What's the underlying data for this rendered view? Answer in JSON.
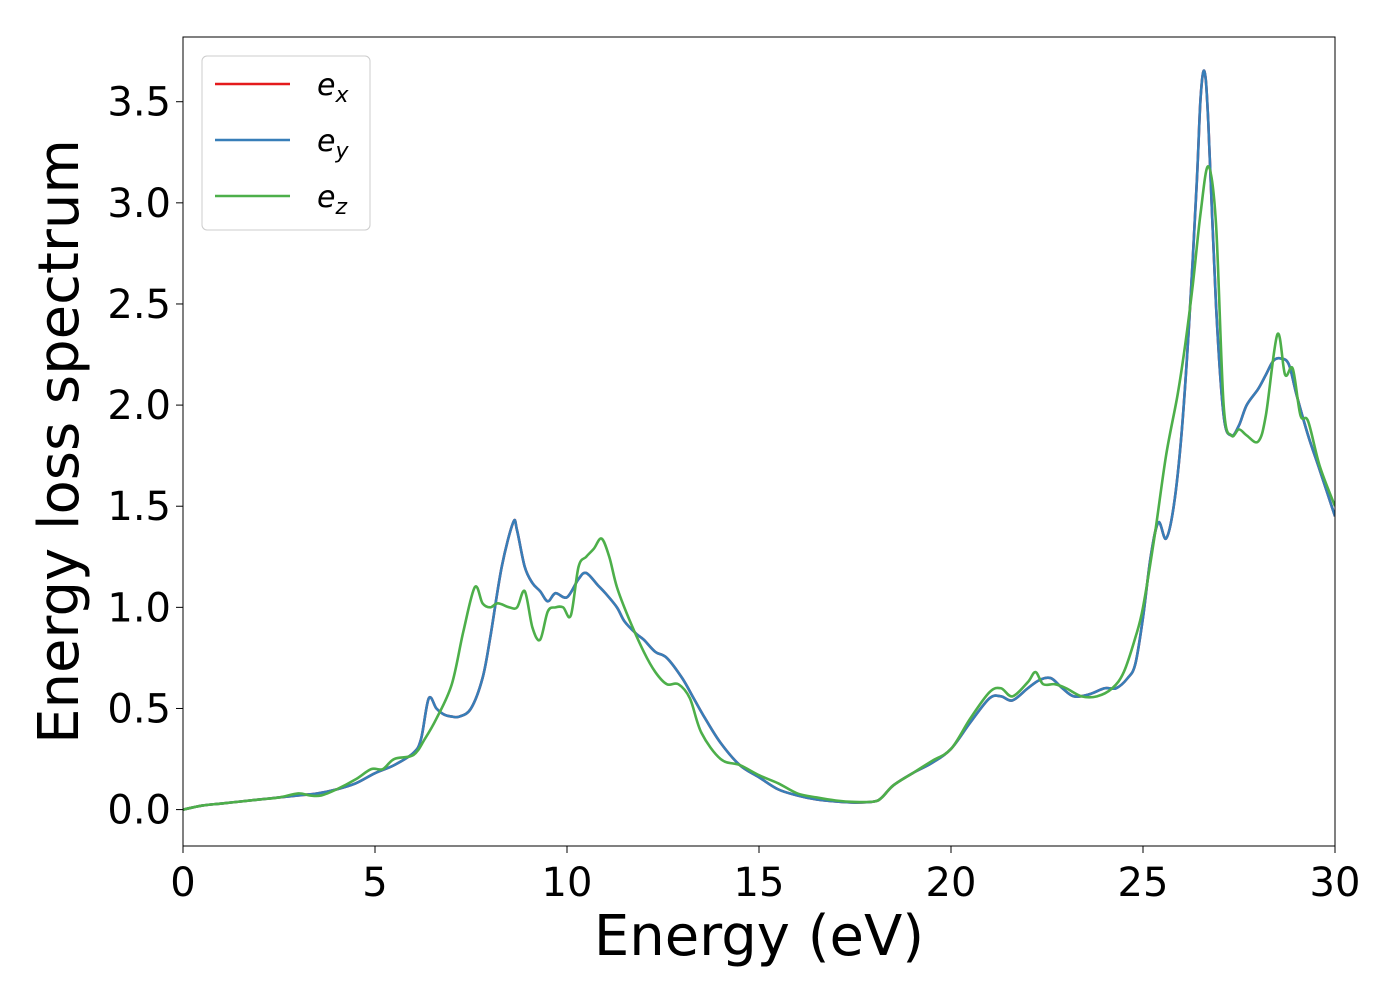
{
  "chart_data": {
    "type": "line",
    "xlabel": "Energy (eV)",
    "ylabel": "Energy loss spectrum",
    "xlim": [
      0,
      30
    ],
    "ylim": [
      -0.18,
      3.82
    ],
    "xticks": [
      0,
      5,
      10,
      15,
      20,
      25,
      30
    ],
    "xtick_labels": [
      "0",
      "5",
      "10",
      "15",
      "20",
      "25",
      "30"
    ],
    "yticks": [
      0.0,
      0.5,
      1.0,
      1.5,
      2.0,
      2.5,
      3.0,
      3.5
    ],
    "ytick_labels": [
      "0.0",
      "0.5",
      "1.0",
      "1.5",
      "2.0",
      "2.5",
      "3.0",
      "3.5"
    ],
    "grid": false,
    "legend_position": "top-left",
    "series": [
      {
        "name": "e_x",
        "label_base": "e",
        "label_sub": "x",
        "color": "#e41a1c",
        "x": [
          0,
          0.5,
          1,
          1.5,
          2,
          2.5,
          3,
          3.5,
          4,
          4.5,
          5,
          5.5,
          6,
          6.2,
          6.4,
          6.6,
          6.8,
          7,
          7.2,
          7.5,
          7.8,
          8,
          8.3,
          8.6,
          8.7,
          8.9,
          9.1,
          9.3,
          9.5,
          9.7,
          10,
          10.3,
          10.5,
          10.8,
          11,
          11.3,
          11.5,
          11.8,
          12,
          12.3,
          12.6,
          13,
          13.3,
          13.6,
          14,
          14.5,
          15,
          15.5,
          16,
          16.5,
          17,
          17.5,
          18,
          18.2,
          18.5,
          19,
          19.5,
          20,
          20.5,
          21,
          21.3,
          21.6,
          22,
          22.3,
          22.6,
          22.9,
          23.2,
          23.6,
          24,
          24.3,
          24.6,
          24.8,
          25,
          25.2,
          25.4,
          25.6,
          25.8,
          26,
          26.2,
          26.4,
          26.5,
          26.6,
          26.7,
          26.9,
          27.1,
          27.3,
          27.5,
          27.7,
          28,
          28.2,
          28.4,
          28.6,
          28.8,
          29,
          29.3,
          29.6,
          30
        ],
        "y": [
          0,
          0.02,
          0.03,
          0.04,
          0.05,
          0.06,
          0.07,
          0.08,
          0.1,
          0.13,
          0.18,
          0.22,
          0.28,
          0.35,
          0.55,
          0.5,
          0.47,
          0.46,
          0.46,
          0.5,
          0.65,
          0.85,
          1.2,
          1.42,
          1.38,
          1.2,
          1.12,
          1.08,
          1.03,
          1.07,
          1.05,
          1.14,
          1.17,
          1.11,
          1.07,
          1.0,
          0.93,
          0.87,
          0.84,
          0.78,
          0.75,
          0.65,
          0.55,
          0.45,
          0.33,
          0.22,
          0.16,
          0.1,
          0.07,
          0.05,
          0.04,
          0.035,
          0.04,
          0.06,
          0.12,
          0.18,
          0.23,
          0.3,
          0.43,
          0.55,
          0.56,
          0.54,
          0.6,
          0.64,
          0.65,
          0.6,
          0.56,
          0.57,
          0.6,
          0.6,
          0.65,
          0.72,
          0.95,
          1.25,
          1.42,
          1.34,
          1.5,
          1.85,
          2.4,
          3.1,
          3.52,
          3.65,
          3.4,
          2.5,
          1.95,
          1.85,
          1.9,
          2.0,
          2.08,
          2.15,
          2.22,
          2.23,
          2.2,
          2.05,
          1.85,
          1.68,
          1.45
        ]
      },
      {
        "name": "e_y",
        "label_base": "e",
        "label_sub": "y",
        "color": "#377eb8",
        "x": [
          0,
          0.5,
          1,
          1.5,
          2,
          2.5,
          3,
          3.5,
          4,
          4.5,
          5,
          5.5,
          6,
          6.2,
          6.4,
          6.6,
          6.8,
          7,
          7.2,
          7.5,
          7.8,
          8,
          8.3,
          8.6,
          8.7,
          8.9,
          9.1,
          9.3,
          9.5,
          9.7,
          10,
          10.3,
          10.5,
          10.8,
          11,
          11.3,
          11.5,
          11.8,
          12,
          12.3,
          12.6,
          13,
          13.3,
          13.6,
          14,
          14.5,
          15,
          15.5,
          16,
          16.5,
          17,
          17.5,
          18,
          18.2,
          18.5,
          19,
          19.5,
          20,
          20.5,
          21,
          21.3,
          21.6,
          22,
          22.3,
          22.6,
          22.9,
          23.2,
          23.6,
          24,
          24.3,
          24.6,
          24.8,
          25,
          25.2,
          25.4,
          25.6,
          25.8,
          26,
          26.2,
          26.4,
          26.5,
          26.6,
          26.7,
          26.9,
          27.1,
          27.3,
          27.5,
          27.7,
          28,
          28.2,
          28.4,
          28.6,
          28.8,
          29,
          29.3,
          29.6,
          30
        ],
        "y": [
          0,
          0.02,
          0.03,
          0.04,
          0.05,
          0.06,
          0.07,
          0.08,
          0.1,
          0.13,
          0.18,
          0.22,
          0.28,
          0.35,
          0.55,
          0.5,
          0.47,
          0.46,
          0.46,
          0.5,
          0.65,
          0.85,
          1.2,
          1.42,
          1.38,
          1.2,
          1.12,
          1.08,
          1.03,
          1.07,
          1.05,
          1.14,
          1.17,
          1.11,
          1.07,
          1.0,
          0.93,
          0.87,
          0.84,
          0.78,
          0.75,
          0.65,
          0.55,
          0.45,
          0.33,
          0.22,
          0.16,
          0.1,
          0.07,
          0.05,
          0.04,
          0.035,
          0.04,
          0.06,
          0.12,
          0.18,
          0.23,
          0.3,
          0.43,
          0.55,
          0.56,
          0.54,
          0.6,
          0.64,
          0.65,
          0.6,
          0.56,
          0.57,
          0.6,
          0.6,
          0.65,
          0.72,
          0.95,
          1.25,
          1.42,
          1.34,
          1.5,
          1.85,
          2.4,
          3.1,
          3.52,
          3.65,
          3.4,
          2.5,
          1.95,
          1.85,
          1.9,
          2.0,
          2.08,
          2.15,
          2.22,
          2.23,
          2.2,
          2.05,
          1.85,
          1.68,
          1.45
        ]
      },
      {
        "name": "e_z",
        "label_base": "e",
        "label_sub": "z",
        "color": "#4daf4a",
        "x": [
          0,
          0.5,
          1,
          1.5,
          2,
          2.5,
          3,
          3.3,
          3.6,
          4,
          4.5,
          4.9,
          5.2,
          5.5,
          6,
          6.3,
          6.6,
          7,
          7.3,
          7.6,
          7.8,
          8,
          8.2,
          8.5,
          8.7,
          8.9,
          9.1,
          9.3,
          9.5,
          9.7,
          9.9,
          10.1,
          10.3,
          10.5,
          10.7,
          10.9,
          11.1,
          11.3,
          11.6,
          12,
          12.3,
          12.6,
          12.9,
          13.2,
          13.5,
          14,
          14.5,
          15,
          15.5,
          16,
          16.5,
          17,
          17.5,
          18,
          18.2,
          18.5,
          19,
          19.5,
          20,
          20.5,
          21,
          21.3,
          21.6,
          22,
          22.2,
          22.4,
          22.7,
          23,
          23.4,
          23.8,
          24.2,
          24.5,
          24.8,
          25,
          25.3,
          25.6,
          25.9,
          26.1,
          26.3,
          26.5,
          26.7,
          26.9,
          27.1,
          27.3,
          27.5,
          27.7,
          28,
          28.2,
          28.5,
          28.7,
          28.9,
          29.1,
          29.3,
          29.6,
          30
        ],
        "y": [
          0,
          0.02,
          0.03,
          0.04,
          0.05,
          0.06,
          0.08,
          0.07,
          0.07,
          0.1,
          0.15,
          0.2,
          0.2,
          0.25,
          0.27,
          0.35,
          0.45,
          0.62,
          0.88,
          1.1,
          1.02,
          1.0,
          1.02,
          1.0,
          1.0,
          1.08,
          0.9,
          0.84,
          0.98,
          1.0,
          1.0,
          0.96,
          1.2,
          1.25,
          1.29,
          1.34,
          1.25,
          1.1,
          0.95,
          0.78,
          0.68,
          0.62,
          0.62,
          0.55,
          0.38,
          0.25,
          0.22,
          0.17,
          0.13,
          0.08,
          0.06,
          0.045,
          0.038,
          0.04,
          0.06,
          0.12,
          0.18,
          0.24,
          0.3,
          0.45,
          0.58,
          0.6,
          0.56,
          0.63,
          0.68,
          0.62,
          0.62,
          0.6,
          0.56,
          0.56,
          0.6,
          0.68,
          0.85,
          1.0,
          1.35,
          1.75,
          2.05,
          2.3,
          2.6,
          2.95,
          3.18,
          2.9,
          2.0,
          1.85,
          1.88,
          1.85,
          1.82,
          1.95,
          2.35,
          2.15,
          2.18,
          1.95,
          1.92,
          1.7,
          1.5
        ]
      }
    ]
  }
}
